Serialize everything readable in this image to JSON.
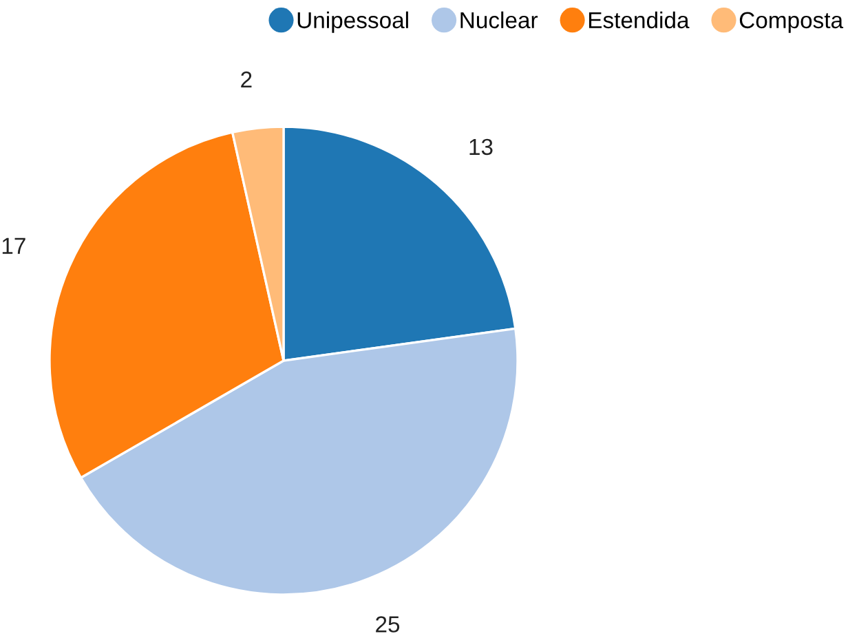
{
  "chart_data": {
    "type": "pie",
    "categories": [
      "Unipessoal",
      "Nuclear",
      "Estendida",
      "Composta"
    ],
    "values": [
      13,
      25,
      17,
      2
    ],
    "colors": [
      "#1f77b4",
      "#aec7e8",
      "#ff7f0e",
      "#ffbb78"
    ],
    "data_labels": true,
    "legend": "top right"
  }
}
